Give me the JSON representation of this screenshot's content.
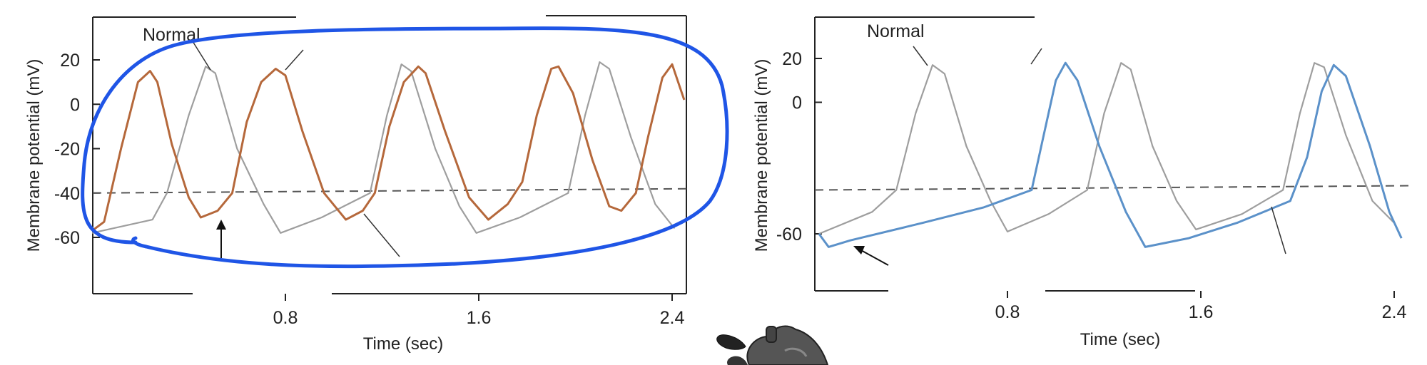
{
  "chart_data": [
    {
      "type": "line",
      "xlabel": "Time (sec)",
      "ylabel": "Membrane potential (mV)",
      "x_ticks": [
        "0.8",
        "1.6",
        "2.4"
      ],
      "y_ticks": [
        "20",
        "0",
        "-20",
        "-40",
        "-60"
      ],
      "xlim": [
        0,
        2.45
      ],
      "ylim": [
        -80,
        40
      ],
      "threshold_mV": -40,
      "annotations": [
        "Normal"
      ],
      "series": [
        {
          "color": "#9e9e9e",
          "points": [
            [
              0.0,
              -58
            ],
            [
              0.25,
              -52
            ],
            [
              0.31,
              -40
            ],
            [
              0.4,
              -5
            ],
            [
              0.47,
              17
            ],
            [
              0.51,
              14
            ],
            [
              0.6,
              -20
            ],
            [
              0.71,
              -45
            ],
            [
              0.78,
              -58
            ],
            [
              0.95,
              -51
            ],
            [
              1.15,
              -40
            ],
            [
              1.22,
              -5
            ],
            [
              1.28,
              18
            ],
            [
              1.32,
              15
            ],
            [
              1.42,
              -20
            ],
            [
              1.52,
              -46
            ],
            [
              1.59,
              -58
            ],
            [
              1.77,
              -51
            ],
            [
              1.97,
              -40
            ],
            [
              2.04,
              -5
            ],
            [
              2.1,
              19
            ],
            [
              2.14,
              16
            ],
            [
              2.23,
              -15
            ],
            [
              2.33,
              -45
            ],
            [
              2.41,
              -56
            ]
          ]
        },
        {
          "color": "#b5683b",
          "points": [
            [
              0.0,
              -57
            ],
            [
              0.05,
              -53
            ],
            [
              0.12,
              -20
            ],
            [
              0.19,
              10
            ],
            [
              0.24,
              15
            ],
            [
              0.27,
              10
            ],
            [
              0.33,
              -18
            ],
            [
              0.4,
              -42
            ],
            [
              0.45,
              -51
            ],
            [
              0.52,
              -48
            ],
            [
              0.58,
              -40
            ],
            [
              0.64,
              -8
            ],
            [
              0.7,
              10
            ],
            [
              0.76,
              16
            ],
            [
              0.8,
              13
            ],
            [
              0.87,
              -12
            ],
            [
              0.96,
              -40
            ],
            [
              1.05,
              -52
            ],
            [
              1.12,
              -48
            ],
            [
              1.17,
              -40
            ],
            [
              1.23,
              -10
            ],
            [
              1.29,
              10
            ],
            [
              1.35,
              17
            ],
            [
              1.38,
              14
            ],
            [
              1.46,
              -12
            ],
            [
              1.56,
              -42
            ],
            [
              1.64,
              -52
            ],
            [
              1.72,
              -45
            ],
            [
              1.78,
              -35
            ],
            [
              1.84,
              -5
            ],
            [
              1.9,
              16
            ],
            [
              1.93,
              17
            ],
            [
              1.99,
              5
            ],
            [
              2.07,
              -25
            ],
            [
              2.14,
              -46
            ],
            [
              2.19,
              -48
            ],
            [
              2.25,
              -40
            ],
            [
              2.3,
              -15
            ],
            [
              2.36,
              12
            ],
            [
              2.4,
              18
            ],
            [
              2.45,
              2
            ]
          ]
        }
      ]
    },
    {
      "type": "line",
      "xlabel": "Time (sec)",
      "ylabel": "Membrane potential (mV)",
      "x_ticks": [
        "0.8",
        "1.6",
        "2.4"
      ],
      "y_ticks": [
        "20",
        "0",
        "-60"
      ],
      "xlim": [
        0,
        2.45
      ],
      "ylim": [
        -80,
        40
      ],
      "threshold_mV": -40,
      "annotations": [
        "Normal"
      ],
      "series": [
        {
          "color": "#9e9e9e",
          "points": [
            [
              0.02,
              -60
            ],
            [
              0.24,
              -50
            ],
            [
              0.34,
              -40
            ],
            [
              0.42,
              -5
            ],
            [
              0.49,
              17
            ],
            [
              0.54,
              13
            ],
            [
              0.63,
              -20
            ],
            [
              0.73,
              -45
            ],
            [
              0.8,
              -59
            ],
            [
              0.97,
              -51
            ],
            [
              1.13,
              -40
            ],
            [
              1.2,
              -5
            ],
            [
              1.27,
              18
            ],
            [
              1.31,
              15
            ],
            [
              1.4,
              -20
            ],
            [
              1.5,
              -45
            ],
            [
              1.58,
              -58
            ],
            [
              1.77,
              -51
            ],
            [
              1.94,
              -40
            ],
            [
              2.01,
              -5
            ],
            [
              2.07,
              18
            ],
            [
              2.11,
              16
            ],
            [
              2.2,
              -15
            ],
            [
              2.31,
              -45
            ],
            [
              2.4,
              -55
            ]
          ]
        },
        {
          "color": "#5b91c9",
          "points": [
            [
              0.02,
              -60
            ],
            [
              0.06,
              -66
            ],
            [
              0.15,
              -63
            ],
            [
              0.45,
              -55
            ],
            [
              0.7,
              -48
            ],
            [
              0.9,
              -40
            ],
            [
              0.95,
              -15
            ],
            [
              1.0,
              10
            ],
            [
              1.04,
              18
            ],
            [
              1.09,
              10
            ],
            [
              1.18,
              -20
            ],
            [
              1.29,
              -50
            ],
            [
              1.37,
              -66
            ],
            [
              1.55,
              -62
            ],
            [
              1.75,
              -55
            ],
            [
              1.97,
              -45
            ],
            [
              2.04,
              -25
            ],
            [
              2.1,
              5
            ],
            [
              2.15,
              17
            ],
            [
              2.2,
              12
            ],
            [
              2.3,
              -20
            ],
            [
              2.38,
              -50
            ],
            [
              2.43,
              -62
            ]
          ]
        }
      ]
    }
  ]
}
